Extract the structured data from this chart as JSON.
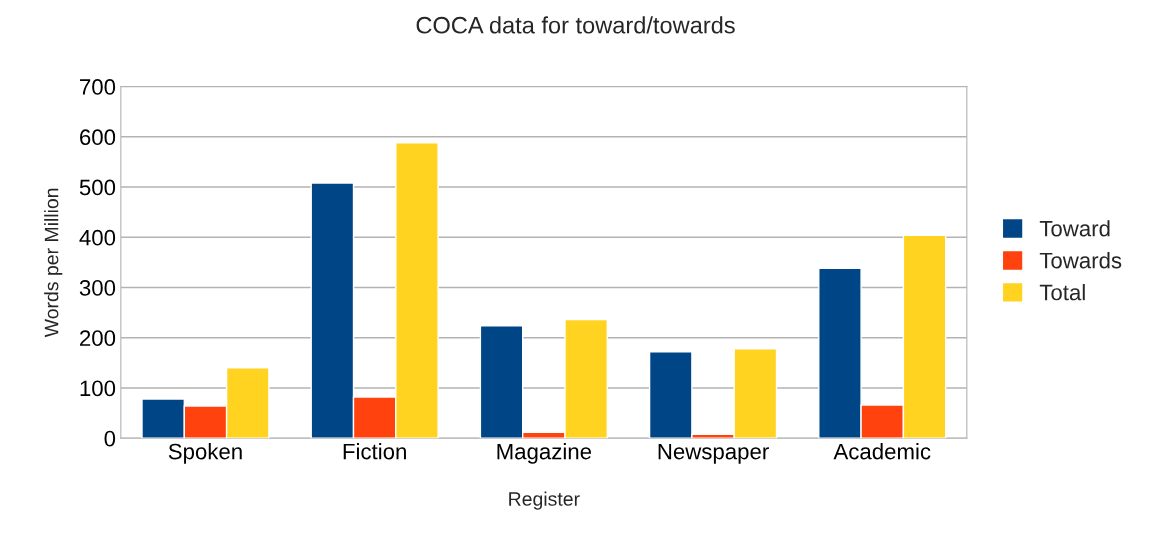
{
  "chart_data": {
    "type": "bar",
    "title": "COCA data for toward/towards",
    "xlabel": "Register",
    "ylabel": "Words per Million",
    "categories": [
      "Spoken",
      "Fiction",
      "Magazine",
      "Newspaper",
      "Academic"
    ],
    "series": [
      {
        "name": "Toward",
        "color": "#004586",
        "values": [
          78,
          508,
          224,
          172,
          338
        ]
      },
      {
        "name": "Towards",
        "color": "#ff420e",
        "values": [
          64,
          82,
          12,
          8,
          66
        ]
      },
      {
        "name": "Total",
        "color": "#ffd320",
        "values": [
          140,
          588,
          236,
          178,
          404
        ]
      }
    ],
    "ylim": [
      0,
      700
    ],
    "yticks": [
      0,
      100,
      200,
      300,
      400,
      500,
      600,
      700
    ],
    "grid": "y",
    "legend": "right"
  }
}
